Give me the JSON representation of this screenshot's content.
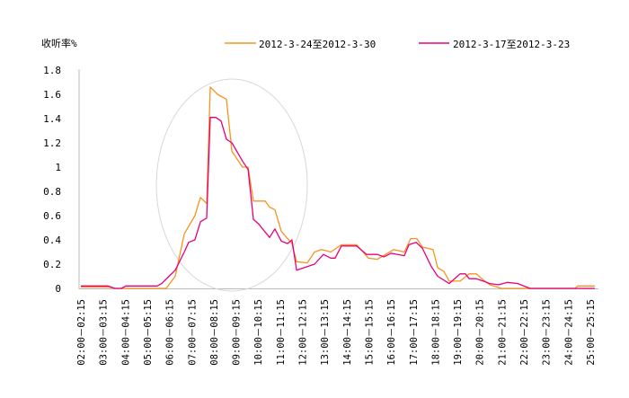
{
  "chart_data": {
    "type": "line",
    "title": "",
    "ylabel": "收听率%",
    "xlabel": "",
    "ylim": [
      0,
      1.8
    ],
    "xlim_hours": [
      2,
      25.25
    ],
    "yticks": [
      "0",
      "0.2",
      "0.4",
      "0.6",
      "0.8",
      "1",
      "1.2",
      "1.4",
      "1.6",
      "1.8"
    ],
    "ytick_values": [
      0,
      0.2,
      0.4,
      0.6,
      0.8,
      1.0,
      1.2,
      1.4,
      1.6,
      1.8
    ],
    "xtick_labels": [
      "02:00－02:15",
      "03:00－03:15",
      "04:00－04:15",
      "05:00－05:15",
      "06:00－06:15",
      "07:00－07:15",
      "08:00－08:15",
      "09:00－09:15",
      "10:00－10:15",
      "11:00－11:15",
      "12:00－12:15",
      "13:00－13:15",
      "14:00－14:15",
      "15:00－15:15",
      "16:00－16:15",
      "17:00－17:15",
      "18:00－18:15",
      "19:00－19:15",
      "20:00－20:15",
      "21:00－21:15",
      "22:00－22:15",
      "23:00－23:15",
      "24:00－24:15",
      "25:00－25:15"
    ],
    "xtick_hours": [
      2,
      3,
      4,
      5,
      6,
      7,
      8,
      9,
      10,
      11,
      12,
      13,
      14,
      15,
      16,
      17,
      18,
      19,
      20,
      21,
      22,
      23,
      24,
      25
    ],
    "legend_position": "top",
    "grid": false,
    "series": [
      {
        "name": "2012-3-24至2012-3-30",
        "color": "#f7941d",
        "x": [
          2,
          3.22,
          3.54,
          5.85,
          6.26,
          6.67,
          7.15,
          7.4,
          7.68,
          7.84,
          8.17,
          8.57,
          8.82,
          9.3,
          9.55,
          9.79,
          10.32,
          10.52,
          10.76,
          11.05,
          11.53,
          11.74,
          12.22,
          12.55,
          12.87,
          13.28,
          13.76,
          14.45,
          14.98,
          15.39,
          16.12,
          16.6,
          16.89,
          17.17,
          17.42,
          17.9,
          18.11,
          18.39,
          18.63,
          19.12,
          19.53,
          19.85,
          20.17,
          20.46,
          20.99,
          24.31,
          24.43,
          25.2
        ],
        "y": [
          0.01,
          0.01,
          0,
          0,
          0.1,
          0.45,
          0.6,
          0.75,
          0.7,
          1.66,
          1.6,
          1.56,
          1.13,
          1.0,
          1.0,
          0.72,
          0.72,
          0.67,
          0.65,
          0.47,
          0.37,
          0.22,
          0.21,
          0.3,
          0.32,
          0.3,
          0.36,
          0.36,
          0.25,
          0.24,
          0.32,
          0.3,
          0.41,
          0.41,
          0.34,
          0.32,
          0.17,
          0.14,
          0.06,
          0.06,
          0.12,
          0.12,
          0.07,
          0.03,
          0,
          0,
          0.02,
          0.02
        ]
      },
      {
        "name": "2012-3-17至2012-3-23",
        "color": "#e6007e",
        "x": [
          2,
          3.22,
          3.54,
          3.83,
          4.03,
          5.45,
          5.65,
          5.98,
          6.26,
          6.67,
          6.87,
          7.15,
          7.4,
          7.68,
          7.84,
          8.09,
          8.33,
          8.57,
          8.82,
          9.3,
          9.55,
          9.79,
          10.03,
          10.52,
          10.76,
          11.05,
          11.33,
          11.53,
          11.74,
          12.22,
          12.55,
          12.95,
          13.28,
          13.48,
          13.76,
          14.45,
          14.9,
          15.39,
          15.67,
          16.0,
          16.6,
          16.81,
          17.13,
          17.42,
          17.82,
          18.11,
          18.63,
          19.12,
          19.36,
          19.53,
          19.85,
          20.17,
          20.46,
          20.86,
          21.27,
          21.72,
          22.28,
          25.2
        ],
        "y": [
          0.02,
          0.02,
          0,
          0,
          0.02,
          0.02,
          0.04,
          0.1,
          0.15,
          0.3,
          0.38,
          0.4,
          0.55,
          0.58,
          1.41,
          1.41,
          1.38,
          1.23,
          1.2,
          1.05,
          0.98,
          0.57,
          0.53,
          0.42,
          0.49,
          0.39,
          0.37,
          0.4,
          0.15,
          0.18,
          0.2,
          0.28,
          0.25,
          0.25,
          0.35,
          0.35,
          0.28,
          0.28,
          0.26,
          0.29,
          0.27,
          0.36,
          0.38,
          0.33,
          0.18,
          0.1,
          0.04,
          0.12,
          0.12,
          0.08,
          0.08,
          0.06,
          0.04,
          0.03,
          0.05,
          0.04,
          0,
          0
        ]
      }
    ]
  }
}
